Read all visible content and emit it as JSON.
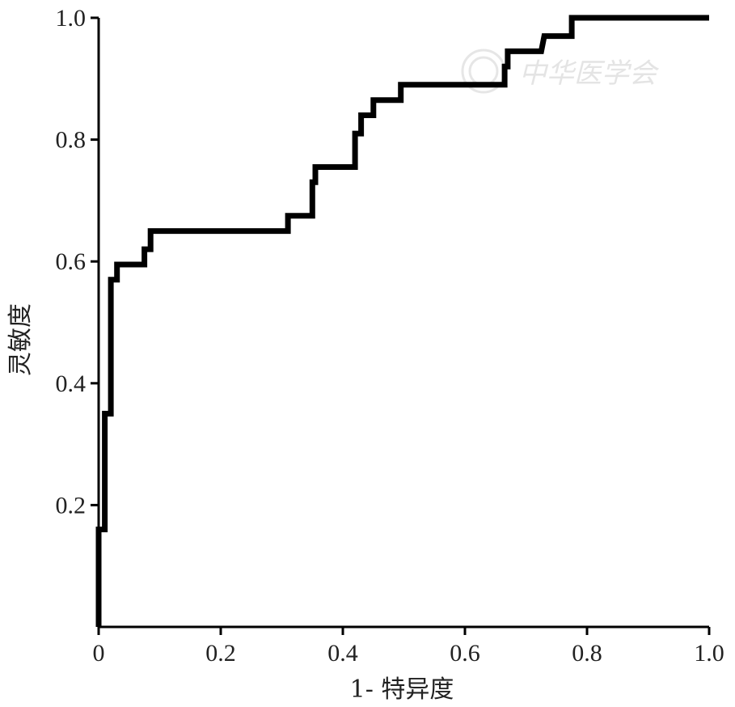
{
  "chart_data": {
    "type": "line",
    "title": "",
    "xlabel": "1- 特异度",
    "ylabel": "灵敏度",
    "xlim": [
      0,
      1
    ],
    "ylim": [
      0,
      1
    ],
    "x_ticks": [
      {
        "value": 0,
        "label": "0"
      },
      {
        "value": 0.2,
        "label": "0.2"
      },
      {
        "value": 0.4,
        "label": "0.4"
      },
      {
        "value": 0.6,
        "label": "0.6"
      },
      {
        "value": 0.8,
        "label": "0.8"
      },
      {
        "value": 1.0,
        "label": "1.0"
      }
    ],
    "y_ticks": [
      {
        "value": 0.2,
        "label": "0.2"
      },
      {
        "value": 0.4,
        "label": "0.4"
      },
      {
        "value": 0.6,
        "label": "0.6"
      },
      {
        "value": 0.8,
        "label": "0.8"
      },
      {
        "value": 1.0,
        "label": "1.0"
      }
    ],
    "grid": false,
    "series": [
      {
        "color": "#000000",
        "points": [
          [
            0,
            0
          ],
          [
            0,
            0.16
          ],
          [
            0.01,
            0.16
          ],
          [
            0.01,
            0.35
          ],
          [
            0.02,
            0.35
          ],
          [
            0.02,
            0.57
          ],
          [
            0.03,
            0.57
          ],
          [
            0.03,
            0.595
          ],
          [
            0.075,
            0.595
          ],
          [
            0.075,
            0.62
          ],
          [
            0.085,
            0.62
          ],
          [
            0.085,
            0.65
          ],
          [
            0.31,
            0.65
          ],
          [
            0.31,
            0.675
          ],
          [
            0.35,
            0.675
          ],
          [
            0.35,
            0.73
          ],
          [
            0.355,
            0.73
          ],
          [
            0.355,
            0.755
          ],
          [
            0.42,
            0.755
          ],
          [
            0.42,
            0.81
          ],
          [
            0.43,
            0.81
          ],
          [
            0.43,
            0.84
          ],
          [
            0.45,
            0.84
          ],
          [
            0.45,
            0.865
          ],
          [
            0.495,
            0.865
          ],
          [
            0.495,
            0.89
          ],
          [
            0.665,
            0.89
          ],
          [
            0.665,
            0.92
          ],
          [
            0.67,
            0.92
          ],
          [
            0.67,
            0.945
          ],
          [
            0.725,
            0.945
          ],
          [
            0.73,
            0.97
          ],
          [
            0.775,
            0.97
          ],
          [
            0.775,
            1.0
          ],
          [
            1.0,
            1.0
          ]
        ]
      }
    ]
  },
  "watermark": {
    "text": "中华医学会"
  }
}
